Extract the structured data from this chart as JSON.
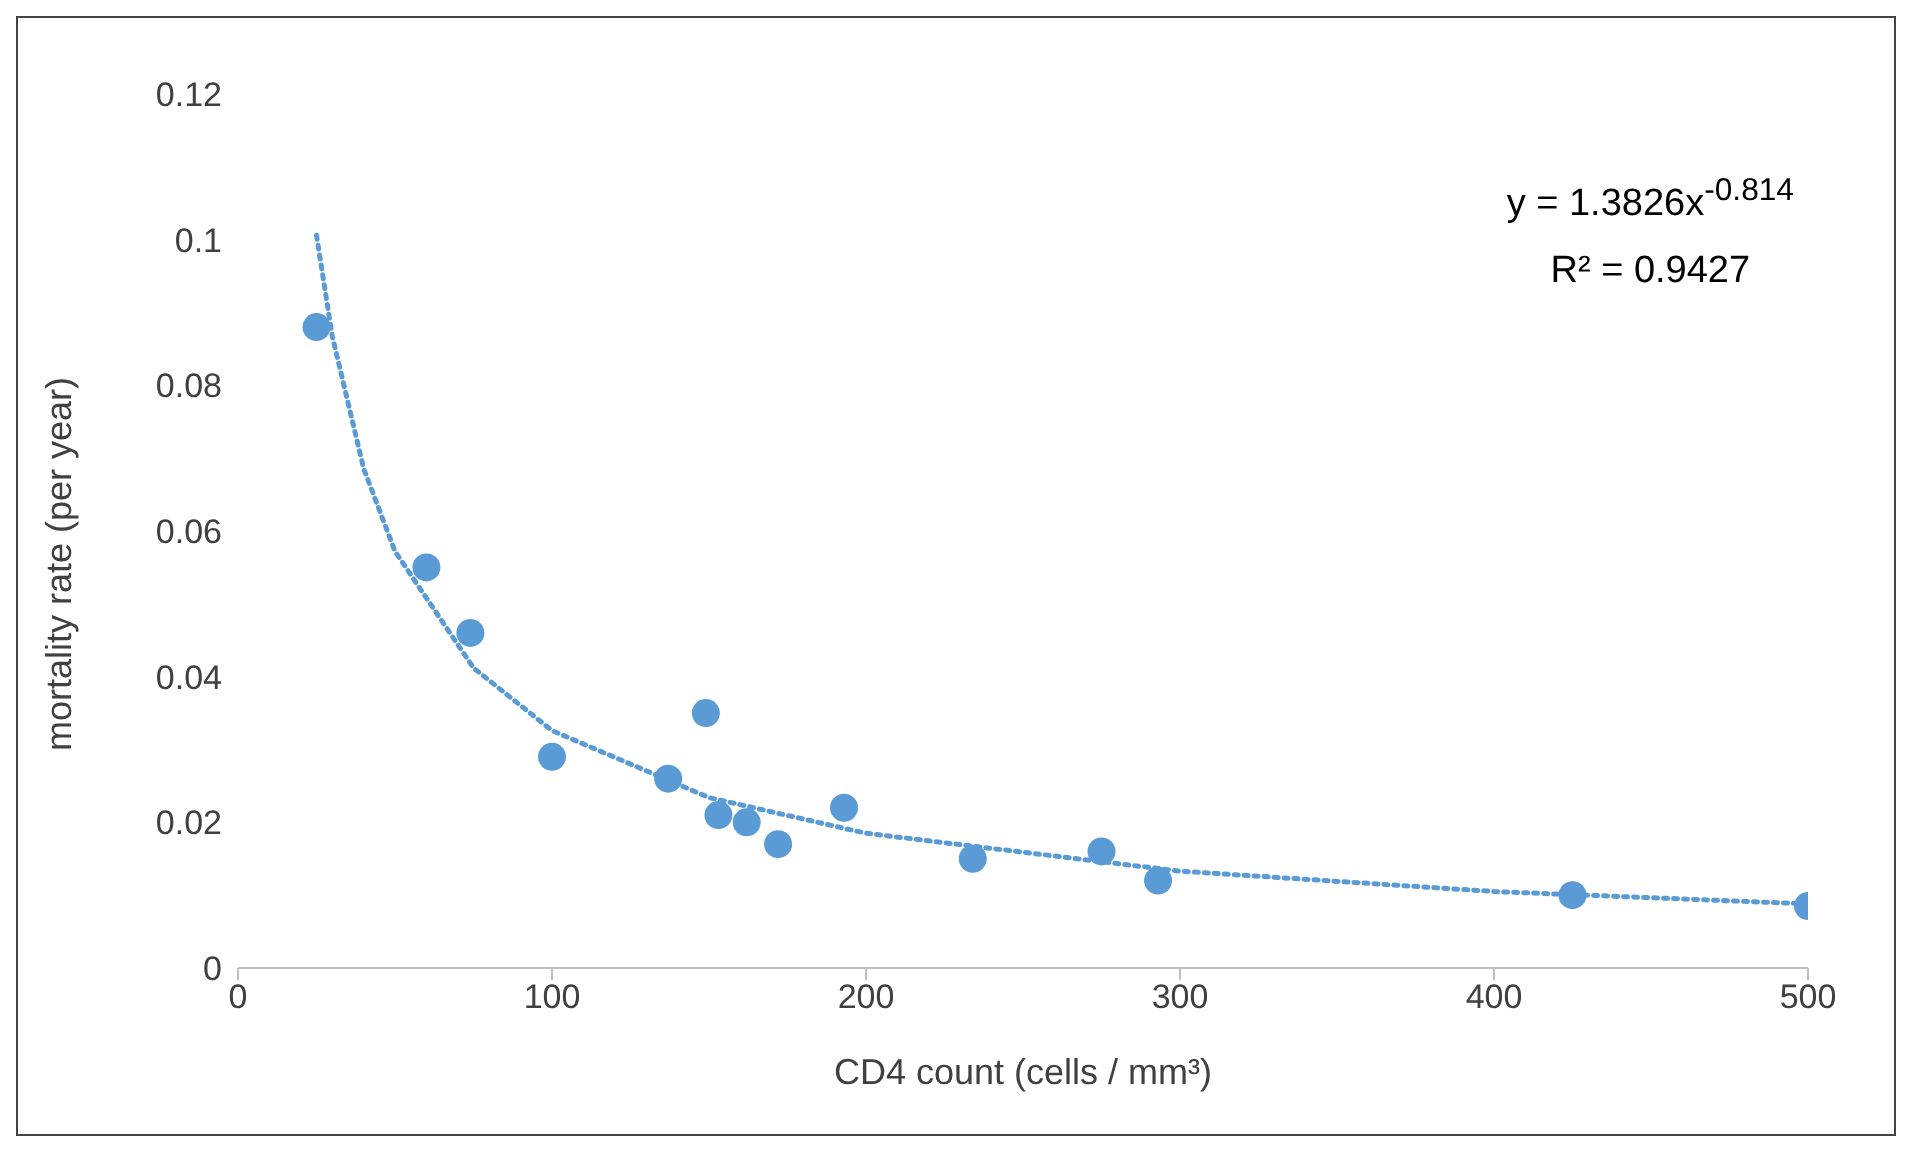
{
  "chart_data": {
    "type": "scatter",
    "xlabel": "CD4 count (cells / mm³)",
    "ylabel": "mortality rate (per year)",
    "xlim": [
      0,
      500
    ],
    "xticks": [
      0,
      100,
      200,
      300,
      400,
      500
    ],
    "ylim": [
      0,
      0.12
    ],
    "yticks": [
      0,
      0.02,
      0.04,
      0.06,
      0.08,
      0.1,
      0.12
    ],
    "grid": false,
    "annotations": [
      "y = 1.3826x$^{-0.814}$",
      "R² = 0.9427"
    ],
    "series": [
      {
        "type": "scatter",
        "marker": "circle",
        "color": "#5b9bd5",
        "x": [
          25,
          60,
          74,
          100,
          137,
          149,
          153,
          162,
          172,
          193,
          234,
          275,
          293,
          425,
          500
        ],
        "values": [
          0.088,
          0.055,
          0.046,
          0.029,
          0.026,
          0.035,
          0.021,
          0.02,
          0.017,
          0.022,
          0.015,
          0.016,
          0.012,
          0.01,
          0.0085
        ]
      },
      {
        "type": "line",
        "line_style": "dotted",
        "marker": "none",
        "color": "#5b9bd5",
        "x": [
          25,
          30,
          40,
          50,
          75,
          100,
          150,
          200,
          300,
          400,
          500
        ],
        "values": [
          0.1006,
          0.0868,
          0.0686,
          0.0572,
          0.0412,
          0.0326,
          0.0234,
          0.0185,
          0.0133,
          0.0105,
          0.0088
        ]
      }
    ]
  }
}
